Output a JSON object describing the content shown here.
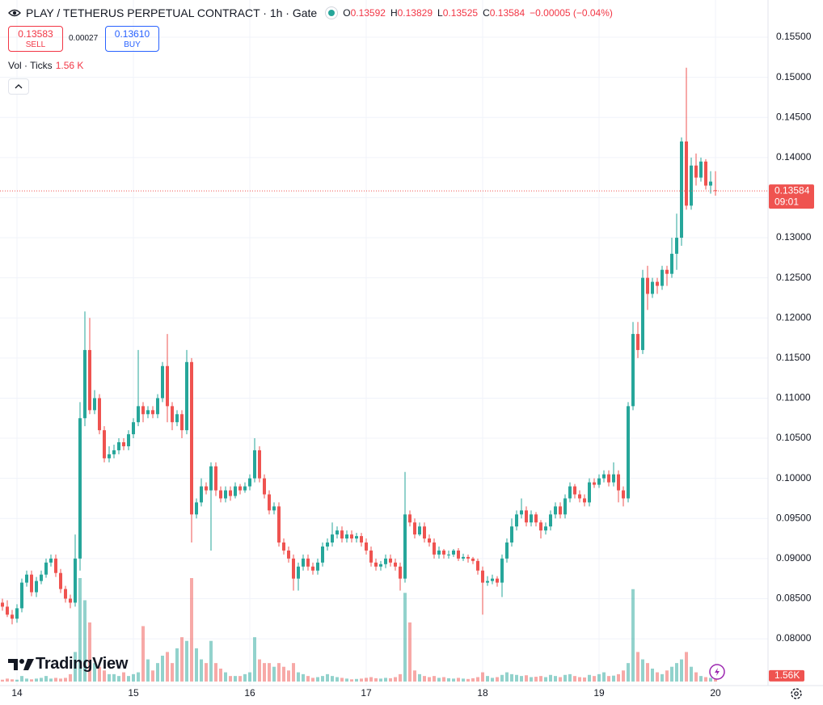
{
  "header": {
    "title": "PLAY / TETHERUS PERPETUAL CONTRACT · 1h · Gate",
    "ohlc": [
      {
        "key": "O",
        "value": "0.13592"
      },
      {
        "key": "H",
        "value": "0.13829"
      },
      {
        "key": "L",
        "value": "0.13525"
      },
      {
        "key": "C",
        "value": "0.13584"
      }
    ],
    "change": "−0.00005 (−0.04%)"
  },
  "trade": {
    "sell_price": "0.13583",
    "sell_label": "SELL",
    "spread": "0.00027",
    "buy_price": "0.13610",
    "buy_label": "BUY"
  },
  "indicator": {
    "name": "Vol · Ticks",
    "value": "1.56 K"
  },
  "branding": "TradingView",
  "chart_data": {
    "type": "candlestick",
    "categories": [
      null,
      null,
      null,
      "14",
      null,
      null,
      null,
      null,
      null,
      null,
      null,
      null,
      null,
      null,
      null,
      null,
      null,
      null,
      null,
      null,
      null,
      null,
      null,
      null,
      null,
      null,
      null,
      "15",
      null,
      null,
      null,
      null,
      null,
      null,
      null,
      null,
      null,
      null,
      null,
      null,
      null,
      null,
      null,
      null,
      null,
      null,
      null,
      null,
      null,
      null,
      null,
      "16",
      null,
      null,
      null,
      null,
      null,
      null,
      null,
      null,
      null,
      null,
      null,
      null,
      null,
      null,
      null,
      null,
      null,
      null,
      null,
      null,
      null,
      null,
      null,
      "17",
      null,
      null,
      null,
      null,
      null,
      null,
      null,
      null,
      null,
      null,
      null,
      null,
      null,
      null,
      null,
      null,
      null,
      null,
      null,
      null,
      null,
      null,
      null,
      "18",
      null,
      null,
      null,
      null,
      null,
      null,
      null,
      null,
      null,
      null,
      null,
      null,
      null,
      null,
      null,
      null,
      null,
      null,
      null,
      null,
      null,
      null,
      null,
      "19",
      null,
      null,
      null,
      null,
      null,
      null,
      null,
      null,
      null,
      null,
      null,
      null,
      null,
      null,
      null,
      null,
      null,
      null,
      null,
      null,
      null,
      null,
      null,
      "20"
    ],
    "open": [
      0.0845,
      0.084,
      0.083,
      0.0825,
      0.0838,
      0.087,
      0.088,
      0.0858,
      0.0872,
      0.088,
      0.0895,
      0.09,
      0.0882,
      0.0862,
      0.085,
      0.0845,
      0.09,
      0.1075,
      0.116,
      0.1085,
      0.11,
      0.106,
      0.1025,
      0.103,
      0.1035,
      0.1045,
      0.104,
      0.1055,
      0.107,
      0.109,
      0.108,
      0.1085,
      0.108,
      0.11,
      0.114,
      0.109,
      0.107,
      0.108,
      0.106,
      0.1145,
      0.0955,
      0.097,
      0.099,
      0.0985,
      0.1015,
      0.0985,
      0.0975,
      0.0985,
      0.0978,
      0.099,
      0.0985,
      0.099,
      0.1,
      0.1035,
      0.1,
      0.098,
      0.096,
      0.0965,
      0.092,
      0.091,
      0.09,
      0.0875,
      0.089,
      0.09,
      0.089,
      0.0885,
      0.0895,
      0.0915,
      0.092,
      0.093,
      0.0935,
      0.0925,
      0.093,
      0.0925,
      0.0928,
      0.092,
      0.091,
      0.0895,
      0.089,
      0.0893,
      0.09,
      0.0895,
      0.089,
      0.0875,
      0.0955,
      0.0945,
      0.093,
      0.094,
      0.0925,
      0.092,
      0.0905,
      0.091,
      0.0905,
      0.0905,
      0.091,
      0.09,
      0.0902,
      0.09,
      0.0897,
      0.0885,
      0.087,
      0.0872,
      0.0875,
      0.087,
      0.09,
      0.092,
      0.094,
      0.0955,
      0.096,
      0.0945,
      0.0955,
      0.0945,
      0.0935,
      0.094,
      0.0955,
      0.0965,
      0.0955,
      0.0975,
      0.099,
      0.098,
      0.0975,
      0.097,
      0.0995,
      0.0992,
      0.1,
      0.1005,
      0.0995,
      0.1005,
      0.0985,
      0.0975,
      0.109,
      0.118,
      0.116,
      0.125,
      0.123,
      0.1245,
      0.124,
      0.126,
      0.1255,
      0.128,
      0.13,
      0.142,
      0.134,
      0.139,
      0.1375,
      0.1395,
      0.1365,
      0.13592
    ],
    "high": [
      0.085,
      0.0848,
      0.0836,
      0.0843,
      0.0875,
      0.0885,
      0.0885,
      0.0877,
      0.0885,
      0.09,
      0.0905,
      0.0905,
      0.0887,
      0.0866,
      0.0855,
      0.093,
      0.1095,
      0.1208,
      0.12,
      0.111,
      0.1105,
      0.1065,
      0.104,
      0.1042,
      0.105,
      0.105,
      0.106,
      0.1075,
      0.116,
      0.1095,
      0.109,
      0.109,
      0.1105,
      0.1145,
      0.118,
      0.1095,
      0.1085,
      0.1085,
      0.116,
      0.115,
      0.0975,
      0.1,
      0.0995,
      0.102,
      0.102,
      0.099,
      0.099,
      0.099,
      0.0995,
      0.0993,
      0.0995,
      0.1005,
      0.105,
      0.104,
      0.1005,
      0.0985,
      0.097,
      0.097,
      0.0925,
      0.0915,
      0.0905,
      0.0895,
      0.0905,
      0.0905,
      0.0895,
      0.09,
      0.092,
      0.0925,
      0.0945,
      0.094,
      0.094,
      0.0935,
      0.0935,
      0.0932,
      0.0932,
      0.0925,
      0.0915,
      0.09,
      0.0897,
      0.0905,
      0.0905,
      0.09,
      0.0895,
      0.1008,
      0.096,
      0.095,
      0.0945,
      0.0945,
      0.093,
      0.0925,
      0.0915,
      0.0912,
      0.091,
      0.0912,
      0.0913,
      0.0906,
      0.0905,
      0.0902,
      0.09,
      0.089,
      0.0878,
      0.088,
      0.0878,
      0.0905,
      0.0925,
      0.095,
      0.096,
      0.0975,
      0.0965,
      0.096,
      0.0958,
      0.0948,
      0.0945,
      0.096,
      0.097,
      0.097,
      0.098,
      0.0995,
      0.0993,
      0.0985,
      0.098,
      0.1,
      0.1,
      0.1005,
      0.101,
      0.101,
      0.102,
      0.101,
      0.099,
      0.1095,
      0.1195,
      0.1195,
      0.126,
      0.1265,
      0.125,
      0.125,
      0.1265,
      0.1265,
      0.13,
      0.133,
      0.1425,
      0.1512,
      0.14,
      0.1405,
      0.14,
      0.1398,
      0.1383,
      0.13829
    ],
    "low": [
      0.0835,
      0.0827,
      0.0818,
      0.082,
      0.0833,
      0.0865,
      0.0853,
      0.0852,
      0.0868,
      0.0876,
      0.089,
      0.0877,
      0.0857,
      0.0845,
      0.0838,
      0.084,
      0.0885,
      0.1065,
      0.108,
      0.108,
      0.1055,
      0.102,
      0.102,
      0.1025,
      0.103,
      0.1035,
      0.1035,
      0.105,
      0.1065,
      0.107,
      0.1075,
      0.1075,
      0.1075,
      0.1095,
      0.107,
      0.106,
      0.1065,
      0.105,
      0.1055,
      0.092,
      0.095,
      0.0965,
      0.098,
      0.091,
      0.0978,
      0.097,
      0.097,
      0.0972,
      0.0975,
      0.098,
      0.0982,
      0.0985,
      0.0995,
      0.0995,
      0.0975,
      0.0955,
      0.0955,
      0.0915,
      0.0905,
      0.0895,
      0.086,
      0.086,
      0.0885,
      0.0885,
      0.088,
      0.088,
      0.089,
      0.091,
      0.0915,
      0.0925,
      0.092,
      0.092,
      0.092,
      0.092,
      0.0915,
      0.0905,
      0.089,
      0.0885,
      0.0885,
      0.0888,
      0.089,
      0.0885,
      0.086,
      0.087,
      0.094,
      0.0925,
      0.0928,
      0.092,
      0.0915,
      0.09,
      0.09,
      0.09,
      0.09,
      0.0902,
      0.0897,
      0.0897,
      0.0895,
      0.0893,
      0.088,
      0.083,
      0.0866,
      0.0868,
      0.0865,
      0.0852,
      0.0895,
      0.0915,
      0.0935,
      0.095,
      0.094,
      0.094,
      0.094,
      0.0925,
      0.093,
      0.0935,
      0.095,
      0.095,
      0.095,
      0.097,
      0.0975,
      0.097,
      0.0965,
      0.0965,
      0.0988,
      0.0988,
      0.0995,
      0.099,
      0.099,
      0.097,
      0.0965,
      0.097,
      0.1085,
      0.115,
      0.1155,
      0.121,
      0.1225,
      0.123,
      0.1235,
      0.124,
      0.125,
      0.126,
      0.129,
      0.1335,
      0.1335,
      0.1365,
      0.137,
      0.136,
      0.1355,
      0.13525
    ],
    "close": [
      0.084,
      0.083,
      0.0825,
      0.0838,
      0.087,
      0.088,
      0.0858,
      0.0872,
      0.088,
      0.0895,
      0.09,
      0.0882,
      0.0862,
      0.085,
      0.0845,
      0.09,
      0.1075,
      0.116,
      0.1085,
      0.11,
      0.106,
      0.1025,
      0.103,
      0.1035,
      0.1045,
      0.104,
      0.1055,
      0.107,
      0.109,
      0.108,
      0.1085,
      0.108,
      0.11,
      0.114,
      0.109,
      0.107,
      0.108,
      0.106,
      0.1145,
      0.0955,
      0.097,
      0.099,
      0.0985,
      0.1015,
      0.0985,
      0.0975,
      0.0985,
      0.0978,
      0.099,
      0.0985,
      0.099,
      0.1,
      0.1035,
      0.1,
      0.098,
      0.096,
      0.0965,
      0.092,
      0.091,
      0.09,
      0.0875,
      0.089,
      0.09,
      0.089,
      0.0885,
      0.0895,
      0.0915,
      0.092,
      0.093,
      0.0935,
      0.0925,
      0.093,
      0.0925,
      0.0928,
      0.092,
      0.091,
      0.0895,
      0.089,
      0.0893,
      0.09,
      0.0895,
      0.089,
      0.0875,
      0.0955,
      0.0945,
      0.093,
      0.094,
      0.0925,
      0.092,
      0.0905,
      0.091,
      0.0905,
      0.0905,
      0.091,
      0.09,
      0.0902,
      0.09,
      0.0897,
      0.0885,
      0.087,
      0.0872,
      0.0875,
      0.087,
      0.09,
      0.092,
      0.094,
      0.0955,
      0.096,
      0.0945,
      0.0955,
      0.0945,
      0.0935,
      0.094,
      0.0955,
      0.0965,
      0.0955,
      0.0975,
      0.099,
      0.098,
      0.0975,
      0.097,
      0.0995,
      0.0992,
      0.1,
      0.1005,
      0.0995,
      0.1005,
      0.0985,
      0.0975,
      0.109,
      0.118,
      0.116,
      0.125,
      0.123,
      0.1245,
      0.124,
      0.126,
      0.1255,
      0.128,
      0.13,
      0.142,
      0.134,
      0.139,
      0.1375,
      0.1395,
      0.1365,
      0.137,
      0.13584
    ],
    "volume": [
      500,
      800,
      600,
      500,
      1500,
      800,
      600,
      800,
      1000,
      1500,
      800,
      1000,
      800,
      1000,
      2000,
      8000,
      28000,
      22000,
      16000,
      5000,
      4000,
      3000,
      2000,
      2000,
      1500,
      2500,
      1500,
      2000,
      2500,
      15000,
      6000,
      3000,
      5000,
      7000,
      8000,
      5000,
      9000,
      12000,
      11000,
      28000,
      9000,
      6000,
      5000,
      11000,
      5000,
      3500,
      2500,
      1500,
      1500,
      1500,
      2000,
      2500,
      12000,
      6000,
      5000,
      5000,
      4000,
      5000,
      4000,
      3000,
      5000,
      2500,
      2000,
      1500,
      1000,
      1200,
      1500,
      2000,
      1500,
      1200,
      1000,
      800,
      600,
      700,
      800,
      1000,
      1200,
      900,
      800,
      1000,
      900,
      1200,
      2000,
      24000,
      16000,
      3000,
      2000,
      1500,
      1200,
      1500,
      1000,
      1200,
      900,
      800,
      1000,
      800,
      700,
      900,
      1200,
      2500,
      1500,
      1000,
      1200,
      1800,
      2500,
      2000,
      1800,
      1500,
      1700,
      1200,
      1300,
      1500,
      1200,
      1800,
      1500,
      1200,
      1800,
      2000,
      1500,
      1200,
      1100,
      1800,
      1500,
      2000,
      2500,
      1500,
      1600,
      2000,
      3000,
      5000,
      25000,
      8000,
      6000,
      5000,
      3500,
      2500,
      2000,
      3000,
      4000,
      5000,
      6000,
      8000,
      4000,
      2500,
      1500,
      1200,
      1000,
      1560
    ],
    "up_color": "#26a69a",
    "down_color": "#ef5350",
    "ylim": [
      0.07416,
      0.15964
    ],
    "yticks": [
      {
        "value": 0.08,
        "label": "0.08000"
      },
      {
        "value": 0.085,
        "label": "0.08500"
      },
      {
        "value": 0.09,
        "label": "0.09000"
      },
      {
        "value": 0.095,
        "label": "0.09500"
      },
      {
        "value": 0.1,
        "label": "0.10000"
      },
      {
        "value": 0.105,
        "label": "0.10500"
      },
      {
        "value": 0.11,
        "label": "0.11000"
      },
      {
        "value": 0.115,
        "label": "0.11500"
      },
      {
        "value": 0.12,
        "label": "0.12000"
      },
      {
        "value": 0.125,
        "label": "0.12500"
      },
      {
        "value": 0.13,
        "label": "0.13000"
      },
      {
        "value": 0.135,
        "label": "0.13500"
      },
      {
        "value": 0.14,
        "label": "0.14000"
      },
      {
        "value": 0.145,
        "label": "0.14500"
      },
      {
        "value": 0.15,
        "label": "0.15000"
      },
      {
        "value": 0.155,
        "label": "0.15500"
      }
    ],
    "grid": true,
    "last_price_label": "0.13584",
    "countdown": "09:01",
    "last_volume_label": "1.56K"
  }
}
